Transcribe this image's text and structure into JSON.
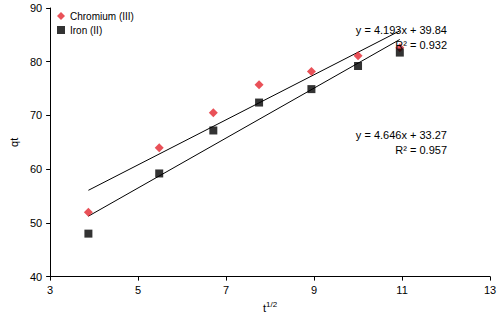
{
  "chart_data": {
    "type": "scatter",
    "xlabel": "t1/2",
    "ylabel": "qt",
    "xlim": [
      3,
      13
    ],
    "xticks": [
      3,
      5,
      7,
      9,
      11,
      13
    ],
    "ylim": [
      40,
      90
    ],
    "yticks": [
      40,
      50,
      60,
      70,
      80,
      90
    ],
    "grid": false,
    "legend": "upper left",
    "series": [
      {
        "name": "Chromium (III)",
        "color": "#e3262e",
        "marker": "diamond",
        "x": [
          3.87,
          5.48,
          6.71,
          7.75,
          8.94,
          10.0,
          10.95
        ],
        "values": [
          52.0,
          64.0,
          70.5,
          75.7,
          78.2,
          81.1,
          82.6
        ],
        "trendline": {
          "slope": 4.193,
          "intercept": 39.84
        },
        "annotations": [
          "y = 4.193x + 39.84",
          "R² = 0.932"
        ]
      },
      {
        "name": "Iron (II)",
        "color": "#000000",
        "marker": "square",
        "x": [
          3.87,
          5.48,
          6.71,
          7.75,
          8.94,
          10.0,
          10.95
        ],
        "values": [
          48.0,
          59.2,
          67.2,
          72.4,
          74.9,
          79.2,
          81.7
        ],
        "trendline": {
          "slope": 4.646,
          "intercept": 33.27
        },
        "annotations": [
          "y = 4.646x + 33.27",
          "R² = 0.957"
        ]
      }
    ]
  }
}
